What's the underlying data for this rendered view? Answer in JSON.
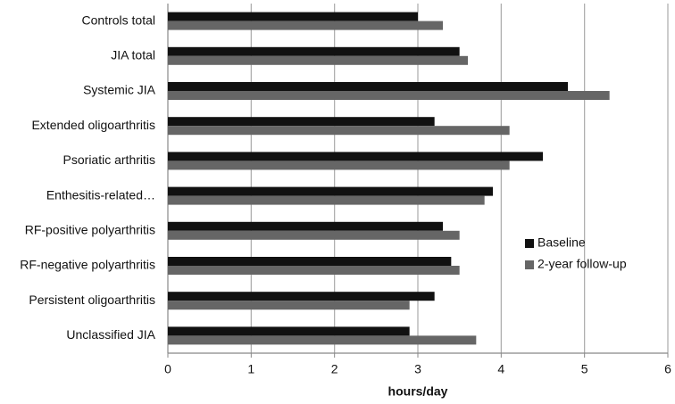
{
  "chart_data": {
    "type": "bar",
    "orientation": "horizontal",
    "categories": [
      "Controls total",
      "JIA total",
      "Systemic JIA",
      "Extended oligoarthritis",
      "Psoriatic arthritis",
      "Enthesitis-related…",
      "RF-positive polyarthritis",
      "RF-negative polyarthritis",
      "Persistent oligoarthritis",
      "Unclassified JIA"
    ],
    "series": [
      {
        "name": "Baseline",
        "color": "#111111",
        "values": [
          3.0,
          3.5,
          4.8,
          3.2,
          4.5,
          3.9,
          3.3,
          3.4,
          3.2,
          2.9
        ]
      },
      {
        "name": "2-year follow-up",
        "color": "#666666",
        "values": [
          3.3,
          3.6,
          5.3,
          4.1,
          4.1,
          3.8,
          3.5,
          3.5,
          2.9,
          3.7
        ]
      }
    ],
    "xlabel": "hours/day",
    "xlim": [
      0,
      6
    ],
    "xticks": [
      0,
      1,
      2,
      3,
      4,
      5,
      6
    ],
    "grid": true,
    "legend": "right"
  }
}
